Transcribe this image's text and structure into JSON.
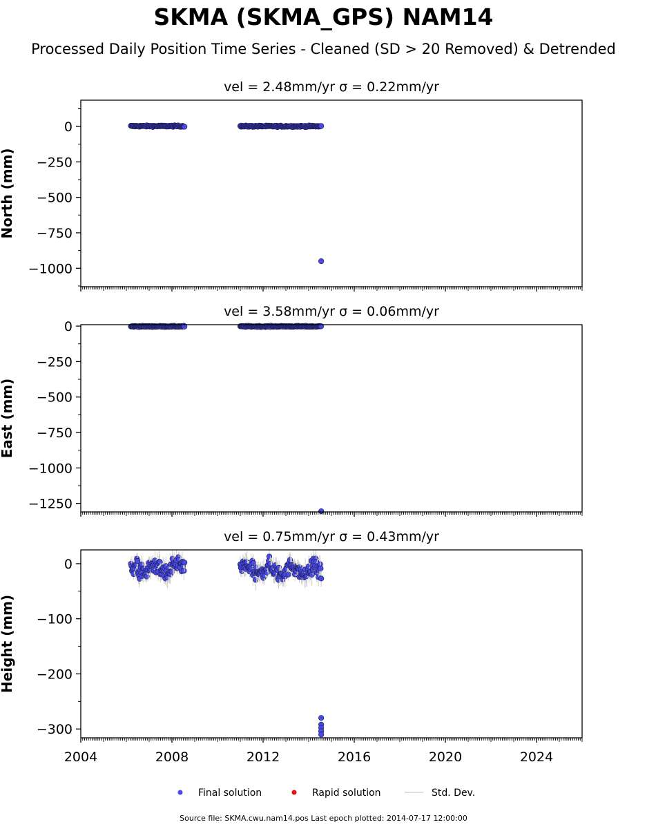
{
  "title": "SKMA (SKMA_GPS) NAM14",
  "subtitle": "Processed Daily Position Time Series - Cleaned (SD > 20 Removed) & Detrended",
  "source_note": "Source file: SKMA.cwu.nam14.pos  Last epoch plotted: 2014-07-17 12:00:00",
  "legend": [
    {
      "label": "Final solution",
      "color": "#4a4ae6",
      "marker": "dot"
    },
    {
      "label": "Rapid solution",
      "color": "#e01010",
      "marker": "dot"
    },
    {
      "label": "Std. Dev.",
      "color": "#cccccc",
      "marker": "line"
    }
  ],
  "colors": {
    "final": "#4a4ae6",
    "final_edge": "#1a1a4a",
    "rapid": "#e01010",
    "stddev": "#cccccc"
  },
  "chart_data": [
    {
      "type": "scatter",
      "panel": "north",
      "title": "vel = 2.48mm/yr   σ = 0.22mm/yr",
      "ylabel": "North (mm)",
      "xlim": [
        2004.0,
        2026.0
      ],
      "ylim": [
        -1130,
        185
      ],
      "yticks": [
        0,
        -250,
        -500,
        -750,
        -1000
      ],
      "ytick_labels": [
        "0",
        "−250",
        "−500",
        "−750",
        "−1000"
      ],
      "xticks": [
        2004,
        2008,
        2012,
        2016,
        2020,
        2024
      ],
      "xtick_labels": [
        "2004",
        "2008",
        "2012",
        "2016",
        "2020",
        "2024"
      ],
      "segments": [
        {
          "start": 2006.2,
          "end": 2008.55,
          "center": 2,
          "spread": 10
        },
        {
          "start": 2011.0,
          "end": 2014.55,
          "center": 1,
          "spread": 10
        }
      ],
      "outliers": [
        [
          2014.55,
          -950
        ]
      ]
    },
    {
      "type": "scatter",
      "panel": "east",
      "title": "vel = 3.58mm/yr   σ = 0.06mm/yr",
      "ylabel": "East (mm)",
      "xlim": [
        2004.0,
        2026.0
      ],
      "ylim": [
        -1310,
        10
      ],
      "yticks": [
        0,
        -250,
        -500,
        -750,
        -1000,
        -1250
      ],
      "ytick_labels": [
        "0",
        "−250",
        "−500",
        "−750",
        "−1000",
        "−1250"
      ],
      "xticks": [
        2004,
        2008,
        2012,
        2016,
        2020,
        2024
      ],
      "xtick_labels": [
        "2004",
        "2008",
        "2012",
        "2016",
        "2020",
        "2024"
      ],
      "segments": [
        {
          "start": 2006.2,
          "end": 2008.55,
          "center": -2,
          "spread": 8
        },
        {
          "start": 2011.0,
          "end": 2014.55,
          "center": -2,
          "spread": 8
        }
      ],
      "outliers": [
        [
          2014.55,
          -1305
        ]
      ]
    },
    {
      "type": "scatter",
      "panel": "height",
      "title": "vel = 0.75mm/yr   σ = 0.43mm/yr",
      "ylabel": "Height (mm)",
      "xlim": [
        2004.0,
        2026.0
      ],
      "ylim": [
        -316,
        25
      ],
      "yticks": [
        0,
        -100,
        -200,
        -300
      ],
      "ytick_labels": [
        "0",
        "−100",
        "−200",
        "−300"
      ],
      "xticks": [
        2004,
        2008,
        2012,
        2016,
        2020,
        2024
      ],
      "xtick_labels": [
        "2004",
        "2008",
        "2012",
        "2016",
        "2020",
        "2024"
      ],
      "segments": [
        {
          "start": 2006.2,
          "end": 2008.55,
          "center": -10,
          "spread": 30
        },
        {
          "start": 2011.0,
          "end": 2014.55,
          "center": -12,
          "spread": 28
        }
      ],
      "outliers": [
        [
          2014.55,
          -280
        ],
        [
          2014.55,
          -292
        ],
        [
          2014.55,
          -298
        ],
        [
          2014.55,
          -304
        ],
        [
          2014.55,
          -310
        ]
      ]
    }
  ]
}
